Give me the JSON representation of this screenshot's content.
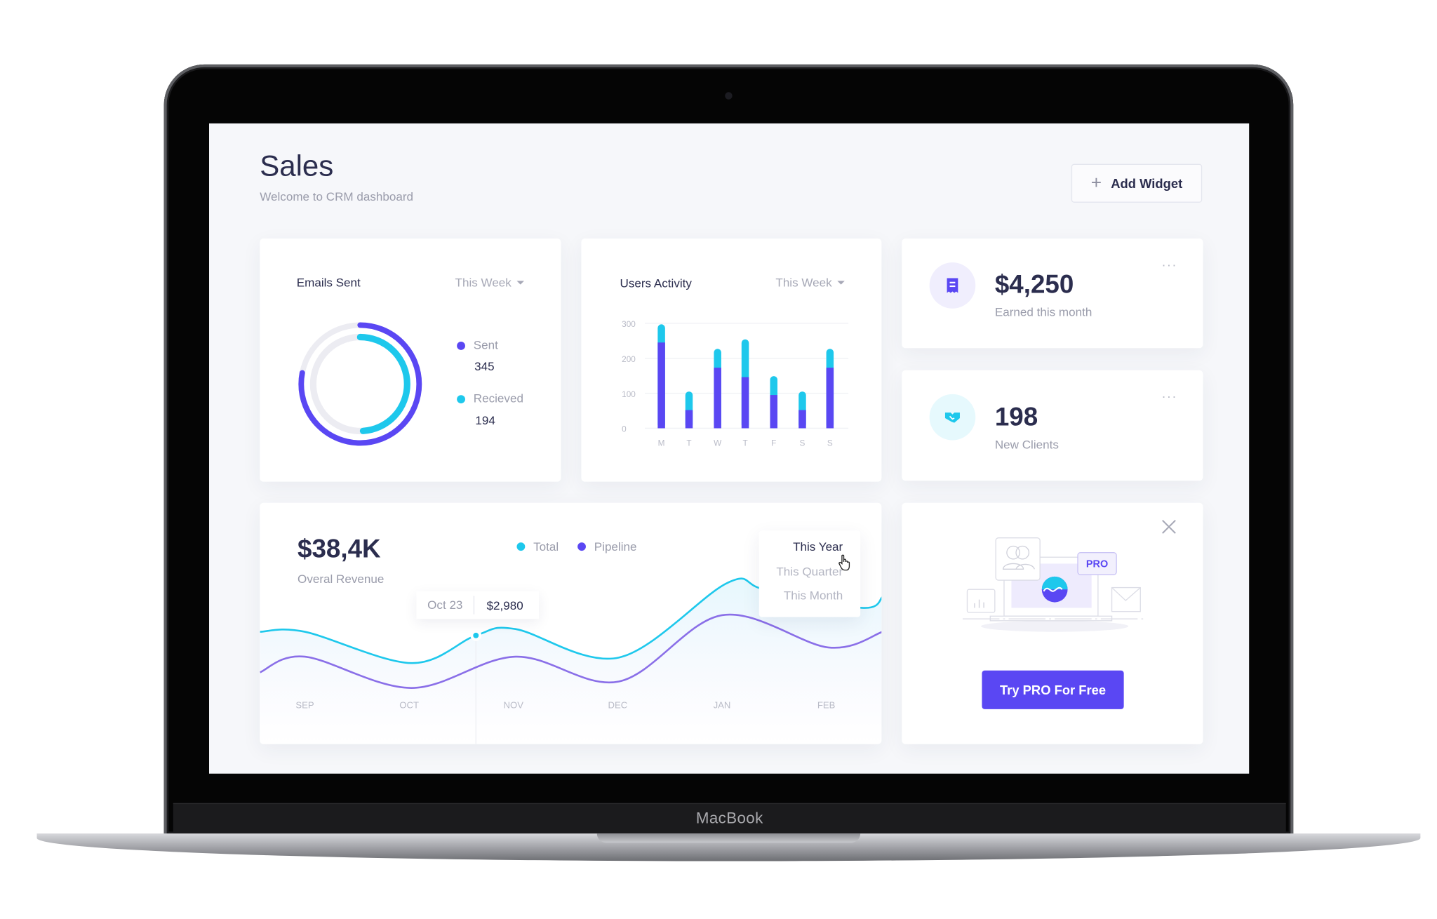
{
  "device": {
    "label": "MacBook"
  },
  "colors": {
    "purple": "#5a47f3",
    "cyan": "#1ec8ec",
    "text": "#2b2d4e",
    "muted": "#9a9cab"
  },
  "header": {
    "title": "Sales",
    "subtitle": "Welcome to CRM dashboard",
    "add_widget_label": "Add Widget",
    "add_icon": "plus-icon"
  },
  "emails_card": {
    "title": "Emails Sent",
    "period": "This Week",
    "legend": [
      {
        "label": "Sent",
        "value": "345",
        "color": "#5a47f3"
      },
      {
        "label": "Recieved",
        "value": "194",
        "color": "#1ec8ec"
      }
    ]
  },
  "activity_card": {
    "title": "Users Activity",
    "period": "This Week"
  },
  "earned_card": {
    "value": "$4,250",
    "label": "Earned this month",
    "icon": "receipt-icon",
    "more": "···"
  },
  "clients_card": {
    "value": "198",
    "label": "New Clients",
    "icon": "handshake-icon",
    "more": "···"
  },
  "revenue_card": {
    "value": "$38,4K",
    "label": "Overal Revenue",
    "legend": [
      {
        "label": "Total",
        "color": "#1ec8ec"
      },
      {
        "label": "Pipeline",
        "color": "#5a47f3"
      }
    ],
    "period_menu": [
      "This Year",
      "This Quarter",
      "This Month"
    ],
    "selected_period": "This Year",
    "tooltip": {
      "date": "Oct 23",
      "value": "$2,980"
    }
  },
  "pro_card": {
    "badge": "PRO",
    "button": "Try PRO For Free",
    "close_icon": "close-icon"
  },
  "chart_data": [
    {
      "type": "pie",
      "variant": "concentric-rings",
      "series": [
        {
          "name": "Sent",
          "value": 345,
          "fill": 0.78
        },
        {
          "name": "Recieved",
          "value": 194,
          "fill": 0.49
        }
      ]
    },
    {
      "type": "bar",
      "stacked": true,
      "categories": [
        "M",
        "T",
        "W",
        "T",
        "F",
        "S",
        "S"
      ],
      "series": [
        {
          "color": "#5a47f3",
          "values": [
            245,
            52,
            173,
            146,
            95,
            52,
            173
          ]
        },
        {
          "color": "#1ec8ec",
          "values": [
            52,
            53,
            54,
            108,
            54,
            53,
            54
          ]
        }
      ],
      "yticks": [
        "0",
        "100",
        "200",
        "300"
      ],
      "ylim": [
        0,
        300
      ],
      "grid": true
    },
    {
      "type": "line",
      "categories": [
        "SEP",
        "OCT",
        "NOV",
        "DEC",
        "JAN",
        "FEB"
      ],
      "series": [
        {
          "name": "Total",
          "color": "#1ec8ec",
          "x": [
            -0.43,
            0,
            1.02,
            1.64,
            2.02,
            3.01,
            4.05,
            4.41,
            5.34,
            5.54
          ],
          "y": [
            84,
            84,
            50,
            80,
            87,
            56,
            137,
            130,
            110,
            122
          ]
        },
        {
          "name": "Pipeline",
          "color": "#5a47f3",
          "x": [
            -0.43,
            0,
            1.02,
            2.02,
            3.01,
            4.0,
            5.02,
            5.54
          ],
          "y": [
            40,
            57,
            23,
            57,
            30,
            102,
            67,
            84
          ]
        }
      ],
      "highlight": {
        "series": "Total",
        "x": 1.64,
        "label": "Oct 23",
        "value": "$2,980"
      },
      "ylim": [
        0,
        160
      ],
      "legend": "top"
    }
  ]
}
